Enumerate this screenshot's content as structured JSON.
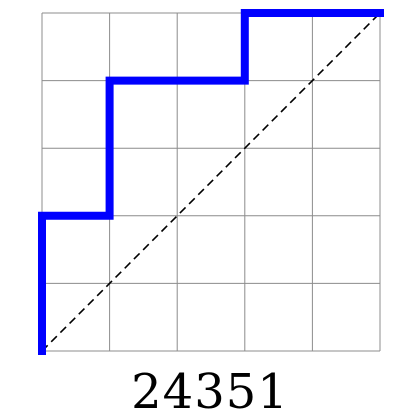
{
  "diagram": {
    "grid_size": 5,
    "path_steps": [
      "N",
      "N",
      "E",
      "N",
      "N",
      "E",
      "E",
      "N",
      "E",
      "E"
    ],
    "path_color": "#0000ff",
    "grid_color": "#8c8c8c",
    "diagonal_color": "#000000"
  },
  "caption": "24351"
}
